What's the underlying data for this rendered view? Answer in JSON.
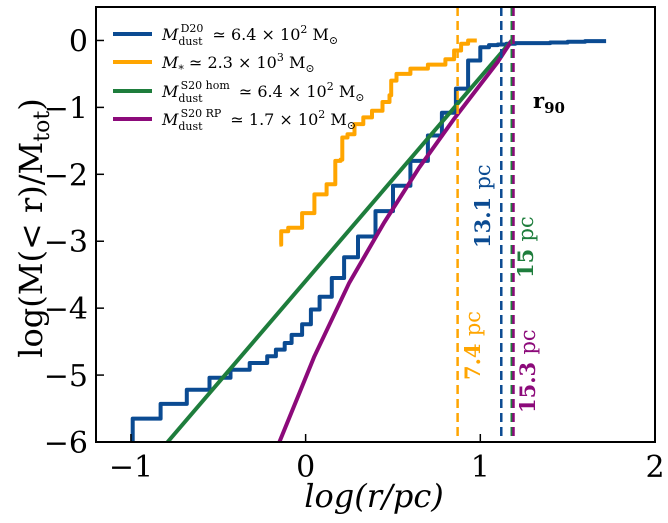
{
  "chart_data": {
    "type": "line",
    "title": "",
    "xlabel": "log(r/pc)",
    "ylabel": "log(M(< r)/M_tot)",
    "xlim": [
      -1.2,
      2.0
    ],
    "ylim": [
      -6.0,
      0.5
    ],
    "xticks": [
      -1,
      0,
      1,
      2
    ],
    "xtick_labels": [
      "−1",
      "0",
      "1",
      "2"
    ],
    "yticks": [
      0,
      -1,
      -2,
      -3,
      -4,
      -5,
      -6
    ],
    "ytick_labels": [
      "0",
      "−1",
      "−2",
      "−3",
      "−4",
      "−5",
      "−6"
    ],
    "grid": false,
    "legend_position": "top-left",
    "series": [
      {
        "name": "M_dust^D20 ≃ 6.4 × 10^2 M_⊙",
        "color": "#0b4b92",
        "step": true,
        "x": [
          -1.0,
          -0.99,
          -0.87,
          -0.83,
          -0.72,
          -0.68,
          -0.58,
          -0.55,
          -0.47,
          -0.43,
          -0.36,
          -0.32,
          -0.26,
          -0.22,
          -0.17,
          -0.12,
          -0.08,
          -0.02,
          0.03,
          0.08,
          0.15,
          0.22,
          0.3,
          0.4,
          0.5,
          0.6,
          0.7,
          0.78,
          0.86,
          0.93,
          1.0,
          1.05,
          1.1,
          1.15,
          1.2,
          1.3,
          1.4,
          1.5,
          1.6,
          1.72
        ],
        "y": [
          -6.0,
          -5.65,
          -5.65,
          -5.43,
          -5.43,
          -5.22,
          -5.22,
          -5.04,
          -5.04,
          -4.92,
          -4.92,
          -4.82,
          -4.82,
          -4.72,
          -4.62,
          -4.52,
          -4.4,
          -4.24,
          -4.02,
          -3.83,
          -3.55,
          -3.24,
          -2.93,
          -2.55,
          -2.17,
          -1.8,
          -1.42,
          -1.08,
          -0.72,
          -0.3,
          -0.1,
          -0.07,
          -0.06,
          -0.05,
          -0.04,
          -0.04,
          -0.03,
          -0.02,
          -0.01,
          -0.01
        ]
      },
      {
        "name": "M_* ≃ 2.3 × 10^3 M_⊙",
        "color": "#ffa500",
        "step": true,
        "x": [
          -0.15,
          -0.14,
          -0.1,
          -0.02,
          0.05,
          0.12,
          0.17,
          0.17,
          0.2,
          0.21,
          0.24,
          0.28,
          0.33,
          0.38,
          0.44,
          0.48,
          0.49,
          0.52,
          0.6,
          0.7,
          0.8,
          0.85,
          0.89,
          0.93,
          0.98
        ],
        "y": [
          -3.05,
          -2.85,
          -2.8,
          -2.58,
          -2.3,
          -2.15,
          -2.0,
          -1.8,
          -1.78,
          -1.45,
          -1.4,
          -1.25,
          -1.15,
          -1.05,
          -0.92,
          -0.82,
          -0.6,
          -0.5,
          -0.42,
          -0.36,
          -0.28,
          -0.15,
          -0.05,
          0.0,
          0.0
        ]
      },
      {
        "name": "M_dust^S20 hom ≃ 6.4 × 10^2 M_⊙",
        "color": "#1e7d3c",
        "x": [
          -0.79,
          1.18
        ],
        "y": [
          -6.0,
          0.0
        ]
      },
      {
        "name": "M_dust^S20 RP ≃ 1.7 × 10^2 M_⊙",
        "color": "#8c0a7a",
        "x": [
          -0.15,
          0.05,
          0.25,
          0.45,
          0.65,
          0.85,
          1.0,
          1.1,
          1.18
        ],
        "y": [
          -6.0,
          -4.72,
          -3.62,
          -2.72,
          -1.9,
          -1.17,
          -0.66,
          -0.32,
          0.0
        ]
      }
    ],
    "vlines": [
      {
        "x": 0.87,
        "color": "#ffa500",
        "label": "7.4",
        "unit": "pc"
      },
      {
        "x": 1.12,
        "color": "#0b4b92",
        "label": "13.1",
        "unit": "pc"
      },
      {
        "x": 1.18,
        "color": "#1e7d3c",
        "label": "15",
        "unit": "pc"
      },
      {
        "x": 1.19,
        "color": "#8c0a7a",
        "label": "15.3",
        "unit": "pc"
      }
    ],
    "annotation": "r90"
  }
}
